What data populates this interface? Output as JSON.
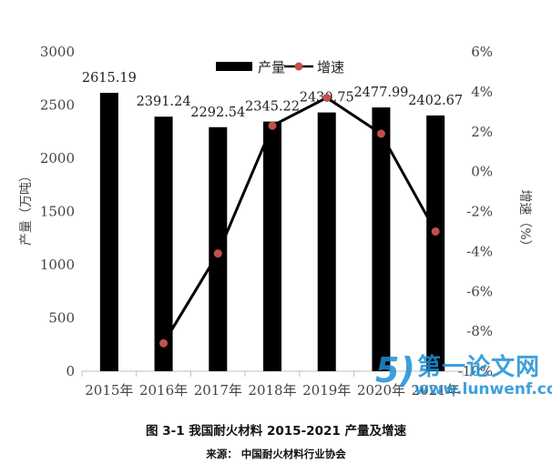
{
  "chart_data": {
    "type": "bar+line",
    "categories": [
      "2015年",
      "2016年",
      "2017年",
      "2018年",
      "2019年",
      "2020年",
      "2021年"
    ],
    "series": [
      {
        "name": "产量",
        "kind": "bar",
        "axis": "left",
        "values": [
          2615.19,
          2391.24,
          2292.54,
          2345.22,
          2430.75,
          2477.99,
          2402.67
        ],
        "labels": [
          "2615.19",
          "2391.24",
          "2292.54",
          "2345.22",
          "2430.75",
          "2477.99",
          "2402.67"
        ],
        "color": "#000000"
      },
      {
        "name": "增速",
        "kind": "line",
        "axis": "right",
        "values": [
          null,
          -8.6,
          -4.1,
          2.3,
          3.7,
          1.9,
          -3.0
        ],
        "line_color": "#000000",
        "marker_color": "#c0504d"
      }
    ],
    "y_left": {
      "label": "产量（万吨）",
      "ylim": [
        0,
        3000
      ],
      "ticks": [
        "0",
        "500",
        "1000",
        "1500",
        "2000",
        "2500",
        "3000"
      ]
    },
    "y_right": {
      "label": "增速（%）",
      "ylim": [
        -10,
        6
      ],
      "ticks": [
        "-10%",
        "-8%",
        "-6%",
        "-4%",
        "-2%",
        "0%",
        "2%",
        "4%",
        "6%"
      ]
    },
    "legend_position": "top-center",
    "grid": false
  },
  "caption": "图 3-1  我国耐火材料 2015-2021 产量及增速",
  "source": "来源：  中国耐火材料行业协会",
  "watermark": {
    "text_cn": "第一论文网",
    "text_url": "www.lunwenf.com",
    "color": "#1e8fd6"
  }
}
